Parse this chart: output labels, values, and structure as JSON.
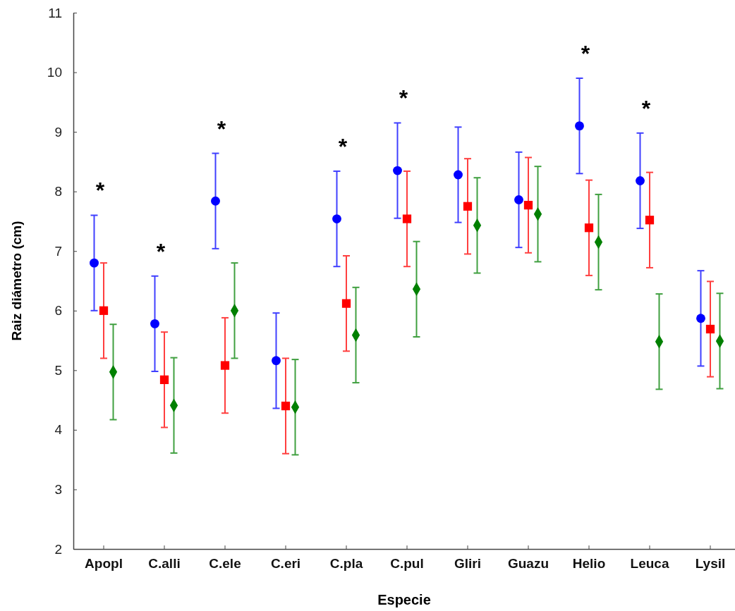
{
  "chart_data": {
    "type": "scatter",
    "xlabel": "Especie",
    "ylabel": "Raiz diámetro (cm)",
    "categories": [
      "Apopl",
      "C.alli",
      "C.ele",
      "C.eri",
      "C.pla",
      "C.pul",
      "Gliri",
      "Guazu",
      "Helio",
      "Leuca",
      "Lysil"
    ],
    "ylim": [
      2,
      11
    ],
    "yticks": [
      2,
      3,
      4,
      5,
      6,
      7,
      8,
      9,
      10,
      11
    ],
    "grid": false,
    "series": [
      {
        "color": "#0000ff",
        "marker": "circle",
        "values": [
          6.8,
          5.78,
          7.84,
          5.16,
          7.54,
          8.35,
          8.28,
          7.86,
          9.1,
          8.18,
          5.87
        ],
        "errors": [
          0.8,
          0.8,
          0.8,
          0.8,
          0.8,
          0.8,
          0.8,
          0.8,
          0.8,
          0.8,
          0.8
        ]
      },
      {
        "color": "#ff0000",
        "marker": "square",
        "values": [
          6.0,
          4.84,
          5.08,
          4.4,
          6.12,
          7.54,
          7.75,
          7.77,
          7.39,
          7.52,
          5.69
        ],
        "errors": [
          0.8,
          0.8,
          0.8,
          0.8,
          0.8,
          0.8,
          0.8,
          0.8,
          0.8,
          0.8,
          0.8
        ]
      },
      {
        "color": "#008000",
        "marker": "diamond",
        "values": [
          4.97,
          4.41,
          6.0,
          4.38,
          5.59,
          6.36,
          7.43,
          7.62,
          7.15,
          5.48,
          5.49
        ],
        "errors": [
          0.8,
          0.8,
          0.8,
          0.8,
          0.8,
          0.8,
          0.8,
          0.8,
          0.8,
          0.8,
          0.8
        ]
      }
    ],
    "annotations": [
      "*",
      "*",
      "*",
      "*",
      "*",
      "*",
      "*"
    ]
  }
}
